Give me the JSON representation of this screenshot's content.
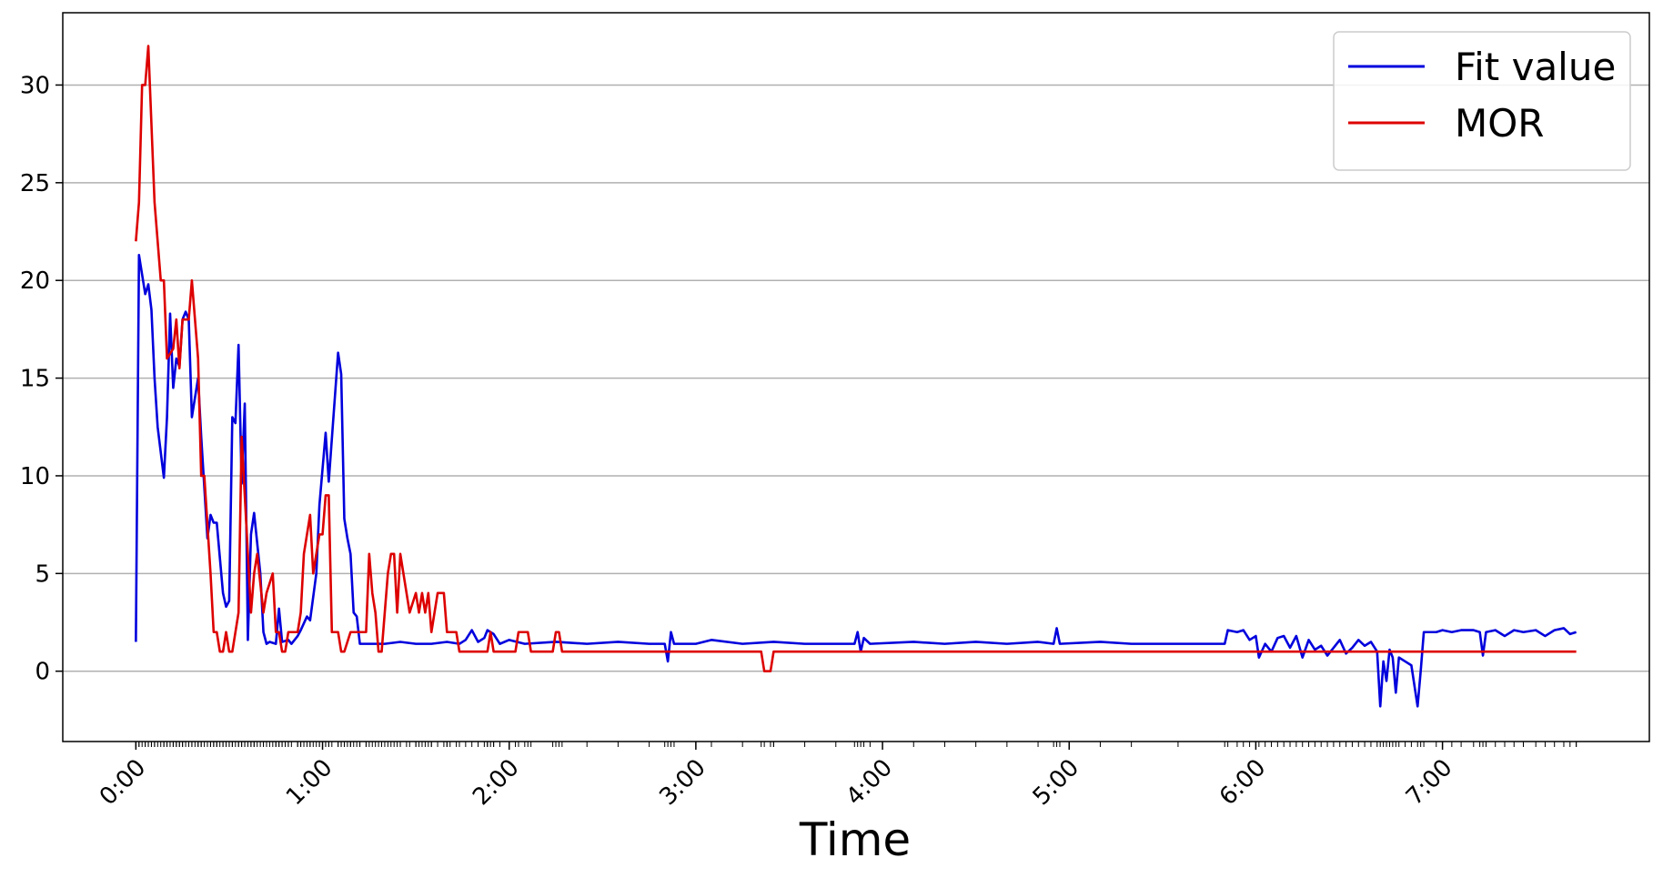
{
  "chart_data": {
    "type": "line",
    "x_label": "Time",
    "xlim": [
      -23.5,
      486.5
    ],
    "ylim": [
      -3.6,
      33.7
    ],
    "xticks": [
      {
        "value": 0,
        "label": "0:00"
      },
      {
        "value": 60,
        "label": "1:00"
      },
      {
        "value": 120,
        "label": "2:00"
      },
      {
        "value": 180,
        "label": "3:00"
      },
      {
        "value": 240,
        "label": "4:00"
      },
      {
        "value": 300,
        "label": "5:00"
      },
      {
        "value": 360,
        "label": "6:00"
      },
      {
        "value": 420,
        "label": "7:00"
      }
    ],
    "yticks": [
      0,
      5,
      10,
      15,
      20,
      25,
      30
    ],
    "grid": "y",
    "legend": "upper right",
    "series": [
      {
        "name": "Fit value",
        "color": "#0000dd",
        "x": [
          0,
          1,
          3,
          4,
          5,
          6,
          7,
          9,
          10,
          11,
          12,
          13,
          14,
          15,
          16,
          17,
          18,
          19,
          20,
          21,
          23,
          24,
          25,
          26,
          28,
          29,
          30,
          31,
          32,
          33,
          34,
          35,
          36,
          37,
          38,
          40,
          41,
          42,
          43,
          45,
          46,
          47,
          49,
          50,
          52,
          53,
          55,
          56,
          58,
          59,
          61,
          62,
          65,
          66,
          67,
          68,
          69,
          70,
          71,
          72,
          74,
          80,
          85,
          90,
          95,
          100,
          104,
          106,
          108,
          110,
          112,
          113,
          115,
          117,
          120,
          125,
          135,
          145,
          155,
          165,
          170,
          171,
          172,
          173,
          180,
          185,
          195,
          205,
          215,
          225,
          231,
          232,
          233,
          234,
          236,
          250,
          260,
          270,
          280,
          290,
          295,
          296,
          297,
          310,
          320,
          335,
          350,
          351,
          354,
          356,
          358,
          360,
          361,
          363,
          365,
          367,
          369,
          371,
          373,
          375,
          377,
          379,
          381,
          383,
          385,
          387,
          389,
          391,
          393,
          395,
          397,
          399,
          400,
          401,
          402,
          403,
          404,
          405,
          406,
          408,
          410,
          412,
          413,
          414,
          418,
          420,
          423,
          426,
          430,
          432,
          433,
          434,
          437,
          440,
          443,
          446,
          450,
          453,
          456,
          459,
          461,
          463
        ],
        "values": [
          1.5,
          21.3,
          19.3,
          19.8,
          18.5,
          15,
          12.5,
          9.9,
          13,
          18.3,
          14.5,
          16,
          15.6,
          18,
          18.4,
          18,
          13,
          14,
          15,
          12,
          6.8,
          8,
          7.6,
          7.6,
          4,
          3.3,
          3.6,
          13,
          12.7,
          16.7,
          9.6,
          13.7,
          1.6,
          7,
          8.1,
          5,
          2,
          1.4,
          1.5,
          1.4,
          3.2,
          1.5,
          1.6,
          1.4,
          1.8,
          2.1,
          2.8,
          2.6,
          5,
          8.5,
          12.2,
          9.7,
          16.3,
          15.2,
          7.8,
          6.8,
          6,
          3,
          2.8,
          1.4,
          1.4,
          1.4,
          1.5,
          1.4,
          1.4,
          1.5,
          1.4,
          1.6,
          2.1,
          1.5,
          1.7,
          2.1,
          1.9,
          1.4,
          1.6,
          1.4,
          1.5,
          1.4,
          1.5,
          1.4,
          1.4,
          0.5,
          2.0,
          1.4,
          1.4,
          1.6,
          1.4,
          1.5,
          1.4,
          1.4,
          1.4,
          2.0,
          1.0,
          1.7,
          1.4,
          1.5,
          1.4,
          1.5,
          1.4,
          1.5,
          1.4,
          2.2,
          1.4,
          1.5,
          1.4,
          1.4,
          1.4,
          2.1,
          2.0,
          2.1,
          1.6,
          1.8,
          0.7,
          1.4,
          1.0,
          1.7,
          1.8,
          1.2,
          1.8,
          0.7,
          1.6,
          1.1,
          1.3,
          0.8,
          1.2,
          1.6,
          0.9,
          1.2,
          1.6,
          1.3,
          1.5,
          1.0,
          -1.8,
          0.5,
          -0.5,
          1.1,
          0.7,
          -1.1,
          0.7,
          0.5,
          0.3,
          -1.8,
          0,
          2.0,
          2.0,
          2.1,
          2.0,
          2.1,
          2.1,
          2.0,
          0.8,
          2.0,
          2.1,
          1.8,
          2.1,
          2.0,
          2.1,
          1.8,
          2.1,
          2.2,
          1.9,
          2.0
        ]
      },
      {
        "name": "MOR",
        "color": "#dd0000",
        "x": [
          0,
          1,
          2,
          3,
          4,
          5,
          6,
          8,
          9,
          10,
          12,
          13,
          14,
          15,
          17,
          18,
          20,
          21,
          22,
          24,
          25,
          26,
          27,
          28,
          29,
          30,
          31,
          33,
          34,
          35,
          37,
          38,
          39,
          41,
          42,
          44,
          45,
          46,
          47,
          48,
          49,
          52,
          53,
          54,
          56,
          57,
          59,
          60,
          61,
          62,
          63,
          65,
          66,
          67,
          69,
          72,
          74,
          75,
          76,
          77,
          78,
          79,
          81,
          82,
          83,
          84,
          85,
          87,
          88,
          90,
          91,
          92,
          93,
          94,
          95,
          97,
          99,
          100,
          101,
          103,
          104,
          113,
          114,
          115,
          122,
          123,
          126,
          127,
          134,
          135,
          136,
          137,
          201,
          202,
          204,
          205,
          463
        ],
        "values": [
          22,
          24,
          30,
          30,
          32,
          28,
          24,
          20,
          20,
          16,
          16.5,
          18,
          15.5,
          18,
          18,
          20,
          16,
          10,
          10,
          5,
          2,
          2,
          1,
          1,
          2,
          1,
          1,
          3,
          12,
          9,
          3,
          5,
          6,
          3,
          4,
          5,
          2,
          2,
          1,
          1,
          2,
          2,
          3,
          6,
          8,
          5,
          7,
          7,
          9,
          9,
          2,
          2,
          1,
          1,
          2,
          2,
          2,
          6,
          4,
          3,
          1,
          1,
          5,
          6,
          6,
          3,
          6,
          4,
          3,
          4,
          3,
          4,
          3,
          4,
          2,
          4,
          4,
          2,
          2,
          2,
          1,
          1,
          2,
          1,
          1,
          2,
          2,
          1,
          1,
          2,
          2,
          1,
          1,
          0,
          0,
          1,
          1
        ]
      }
    ]
  }
}
